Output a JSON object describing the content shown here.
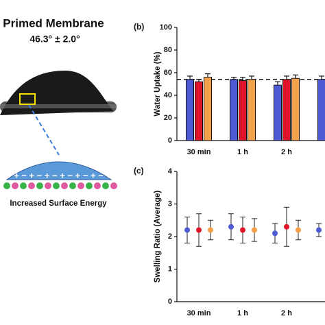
{
  "panel_a": {
    "title": "Primed Membrane",
    "angle": "46.3° ± 2.0°",
    "caption": "Increased Surface Energy"
  },
  "chart_data": [
    {
      "type": "bar",
      "panel_label": "(b)",
      "ylabel": "Water Uptake (%)",
      "categories": [
        "30 min",
        "1 h",
        "2 h",
        null
      ],
      "series": [
        {
          "name": null,
          "color": "#4f5bd5",
          "values": [
            54,
            54,
            49,
            54
          ],
          "errors": [
            3,
            2,
            3,
            3
          ]
        },
        {
          "name": null,
          "color": "#e0142a",
          "values": [
            52,
            53,
            54,
            null
          ],
          "errors": [
            2,
            3,
            3,
            null
          ]
        },
        {
          "name": null,
          "color": "#f2a04a",
          "values": [
            56,
            54,
            55,
            null
          ],
          "errors": [
            3,
            3,
            3,
            null
          ]
        }
      ],
      "reference_line": 54,
      "ylim": [
        0,
        100
      ],
      "yticks": [
        0,
        20,
        40,
        60,
        80,
        100
      ]
    },
    {
      "type": "scatter",
      "panel_label": "(c)",
      "ylabel": "Swelling Ratio (Average)",
      "categories": [
        "30 min",
        "1 h",
        "2 h",
        null
      ],
      "series": [
        {
          "name": null,
          "color": "#4f5bd5",
          "values": [
            2.2,
            2.3,
            2.1,
            2.2
          ],
          "errors": [
            0.4,
            0.4,
            0.3,
            0.2
          ]
        },
        {
          "name": null,
          "color": "#e0142a",
          "values": [
            2.2,
            2.2,
            2.3,
            null
          ],
          "errors": [
            0.5,
            0.4,
            0.6,
            null
          ]
        },
        {
          "name": null,
          "color": "#f2a04a",
          "values": [
            2.2,
            2.2,
            2.2,
            null
          ],
          "errors": [
            0.3,
            0.35,
            0.3,
            null
          ]
        }
      ],
      "ylim": [
        0,
        4
      ],
      "yticks": [
        0,
        1,
        2,
        3,
        4
      ]
    }
  ]
}
